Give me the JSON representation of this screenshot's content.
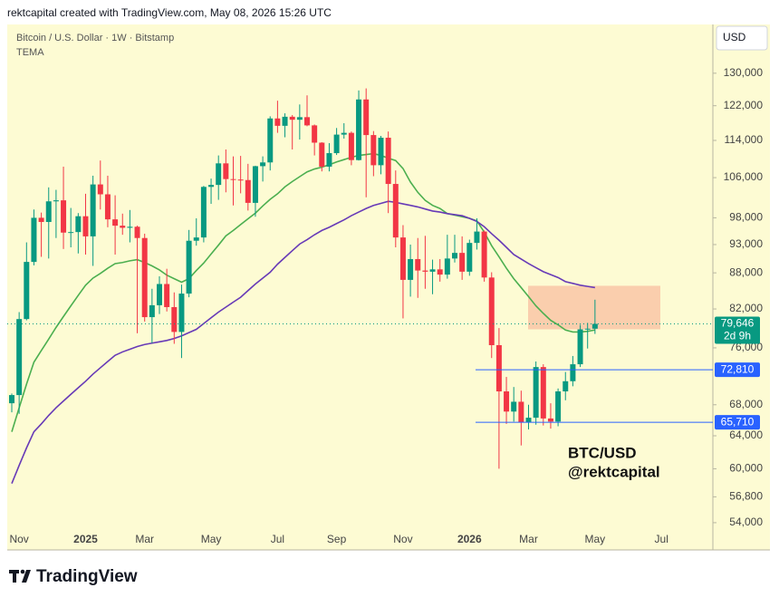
{
  "header": "rektcapital created with TradingView.com, May 08, 2026 15:26 UTC",
  "footer_logo": "TradingView",
  "chart_data": {
    "type": "candlestick",
    "title": "Bitcoin / U.S. Dollar · 1W · Bitstamp",
    "indicator": "TEMA",
    "currency": "USD",
    "annotations": [
      "BTC/USD",
      "@rektcapital"
    ],
    "categories": [
      null,
      "Nov",
      null,
      null,
      null,
      null,
      null,
      null,
      null,
      null,
      "2025",
      null,
      null,
      null,
      null,
      null,
      null,
      null,
      "Mar",
      null,
      null,
      null,
      null,
      null,
      null,
      null,
      null,
      "May",
      null,
      null,
      null,
      null,
      null,
      null,
      null,
      null,
      "Jul",
      null,
      null,
      null,
      null,
      null,
      null,
      null,
      "Sep",
      null,
      null,
      null,
      null,
      null,
      null,
      null,
      null,
      "Nov",
      null,
      null,
      null,
      null,
      null,
      null,
      null,
      null,
      "2026",
      null,
      null,
      null,
      null,
      null,
      null,
      null,
      "Mar",
      null,
      null,
      null,
      null,
      null,
      null,
      null,
      null,
      "May",
      null,
      null,
      null,
      null,
      null,
      null,
      null,
      null,
      "Jul"
    ],
    "open": [
      68200,
      69300,
      80400,
      89900,
      98000,
      97200,
      101200,
      101400,
      95200,
      95300,
      98300,
      94500,
      104600,
      102600,
      97700,
      96500,
      96100,
      96300,
      94200,
      80700,
      82600,
      86100,
      82300,
      78400,
      84500,
      93700,
      94300,
      104100,
      104500,
      109000,
      105700,
      105600,
      105500,
      100900,
      108400,
      109200,
      119000,
      117300,
      119400,
      118700,
      119300,
      117400,
      113500,
      108300,
      111200,
      115300,
      115700,
      109700,
      123500,
      115200,
      108600,
      114600,
      104700,
      94300,
      86800,
      90400,
      88400,
      88200,
      88600,
      87700,
      90500,
      91500,
      88200,
      93300,
      95400,
      87200,
      76400,
      69800,
      67100,
      68400,
      65700,
      66300,
      73200,
      66200,
      65800,
      69800,
      71200,
      73600,
      78800,
      78900,
      null,
      null,
      null,
      null,
      null,
      null,
      null,
      null,
      null
    ],
    "high": [
      69500,
      81500,
      93400,
      99600,
      99000,
      104000,
      103500,
      108300,
      99900,
      98900,
      102700,
      106400,
      109600,
      106400,
      102400,
      98800,
      99500,
      96500,
      95000,
      85300,
      87400,
      88700,
      84700,
      86000,
      95700,
      97900,
      104300,
      105800,
      110700,
      112000,
      110500,
      110600,
      108900,
      108500,
      110500,
      119500,
      123200,
      120200,
      119800,
      122300,
      124500,
      117600,
      113600,
      113400,
      116800,
      117900,
      116000,
      125700,
      126200,
      116100,
      115000,
      116000,
      107500,
      96600,
      93000,
      94200,
      94600,
      90300,
      90400,
      94800,
      94800,
      94500,
      93900,
      97900,
      95600,
      88100,
      79000,
      71800,
      70400,
      69900,
      68000,
      74000,
      73600,
      68200,
      70200,
      72500,
      74800,
      79500,
      79800,
      83500,
      null,
      null,
      null,
      null,
      null,
      null,
      null,
      null,
      null
    ],
    "low": [
      67000,
      66800,
      80200,
      89300,
      90800,
      90500,
      94200,
      92200,
      92500,
      91400,
      91200,
      89200,
      99600,
      96200,
      91200,
      94800,
      93400,
      78200,
      80000,
      76700,
      81200,
      81600,
      76600,
      74500,
      83900,
      92800,
      93400,
      100700,
      101500,
      103000,
      100400,
      102800,
      99400,
      98200,
      105200,
      107500,
      115700,
      114700,
      112000,
      114200,
      117200,
      110700,
      107300,
      107300,
      110800,
      114400,
      108600,
      109600,
      102000,
      106300,
      106700,
      98900,
      92500,
      80500,
      84000,
      83800,
      85300,
      84400,
      86500,
      87000,
      89800,
      86800,
      87500,
      92100,
      86500,
      74500,
      60000,
      65500,
      65800,
      62800,
      64800,
      65400,
      65300,
      64900,
      65200,
      68600,
      70500,
      73200,
      75900,
      78100,
      null,
      null,
      null,
      null,
      null,
      null,
      null,
      null,
      null
    ],
    "close": [
      69300,
      80400,
      89900,
      98000,
      97200,
      101200,
      101400,
      95200,
      95300,
      98300,
      94500,
      104600,
      102600,
      97700,
      96500,
      96100,
      96300,
      94200,
      80700,
      82600,
      86100,
      82300,
      78400,
      84500,
      93700,
      94300,
      104100,
      104500,
      109000,
      105700,
      105600,
      105500,
      100900,
      108400,
      109200,
      119000,
      117300,
      119400,
      118700,
      119300,
      117400,
      113500,
      108300,
      111200,
      115300,
      115700,
      109700,
      123500,
      115200,
      108600,
      114600,
      104700,
      94300,
      86800,
      90400,
      88400,
      88200,
      88600,
      87700,
      90500,
      91500,
      88200,
      93300,
      95400,
      87200,
      76400,
      69800,
      67100,
      68400,
      65700,
      66300,
      73200,
      66200,
      65800,
      69800,
      71200,
      73600,
      78800,
      78900,
      79646,
      null,
      null,
      null,
      null,
      null,
      null,
      null,
      null,
      null
    ],
    "up_color": "#089981",
    "down_color": "#f23645",
    "series": [
      {
        "color": "#4caf50",
        "values": [
          64500,
          67600,
          70800,
          73900,
          75600,
          77300,
          79100,
          80800,
          82500,
          84200,
          85900,
          87100,
          87900,
          88800,
          89600,
          89800,
          90100,
          90300,
          89800,
          89200,
          88500,
          87600,
          87000,
          86400,
          87000,
          88400,
          89700,
          91300,
          92900,
          94600,
          95600,
          96700,
          97800,
          98900,
          100300,
          101600,
          102700,
          104100,
          105200,
          106200,
          107200,
          107800,
          108200,
          108700,
          109300,
          109800,
          110300,
          110700,
          110900,
          111100,
          110700,
          110100,
          109600,
          107900,
          105100,
          103000,
          101400,
          100400,
          99800,
          98800,
          98500,
          98200,
          97900,
          97400,
          95300,
          92800,
          90800,
          88800,
          87000,
          85500,
          84000,
          82500,
          81300,
          80200,
          79500,
          78700,
          78400,
          78400,
          78500,
          78700,
          null,
          null,
          null,
          null,
          null,
          null,
          null,
          null,
          null
        ]
      },
      {
        "color": "#673ab7",
        "values": [
          58300,
          60400,
          62500,
          64500,
          65500,
          66600,
          67600,
          68500,
          69400,
          70300,
          71200,
          72200,
          73100,
          74000,
          74900,
          75400,
          75800,
          76200,
          76500,
          76700,
          76900,
          77100,
          77400,
          77800,
          78300,
          78800,
          79700,
          80600,
          81500,
          82300,
          83100,
          83900,
          85000,
          86100,
          87100,
          88100,
          89500,
          90700,
          91900,
          93100,
          93900,
          94800,
          95600,
          96200,
          96900,
          97600,
          98400,
          99100,
          99800,
          100400,
          100800,
          101200,
          101000,
          100700,
          100400,
          100100,
          99700,
          99300,
          99100,
          98800,
          98600,
          98400,
          97900,
          97300,
          96300,
          95000,
          93800,
          92500,
          91200,
          90400,
          89600,
          88900,
          88200,
          87700,
          87200,
          86500,
          86200,
          85900,
          85700,
          85500,
          null,
          null,
          null,
          null,
          null,
          null,
          null,
          null,
          null
        ]
      }
    ],
    "log_scale": true,
    "grid": false,
    "ylim": [
      51200,
      143000
    ],
    "yticks": [
      {
        "value": 130000,
        "label": "130,000"
      },
      {
        "value": 122000,
        "label": "122,000"
      },
      {
        "value": 114000,
        "label": "114,000"
      },
      {
        "value": 106000,
        "label": "106,000"
      },
      {
        "value": 98000,
        "label": "98,000"
      },
      {
        "value": 93000,
        "label": "93,000"
      },
      {
        "value": 88000,
        "label": "88,000"
      },
      {
        "value": 82000,
        "label": "82,000"
      },
      {
        "value": 76000,
        "label": "76,000"
      },
      {
        "value": 68000,
        "label": "68,000"
      },
      {
        "value": 64000,
        "label": "64,000"
      },
      {
        "value": 60000,
        "label": "60,000"
      },
      {
        "value": 56800,
        "label": "56,800"
      },
      {
        "value": 54000,
        "label": "54,000"
      }
    ],
    "last_price": {
      "value": 79646,
      "label": "79,646"
    },
    "countdown": "2d 9h",
    "levels": [
      {
        "value": 72810,
        "label": "72,810"
      },
      {
        "value": 65710,
        "label": "65,710"
      }
    ],
    "level_color": "#2962ff",
    "zone": [
      78800,
      85800
    ],
    "zone_color": "#f8bfa0"
  }
}
